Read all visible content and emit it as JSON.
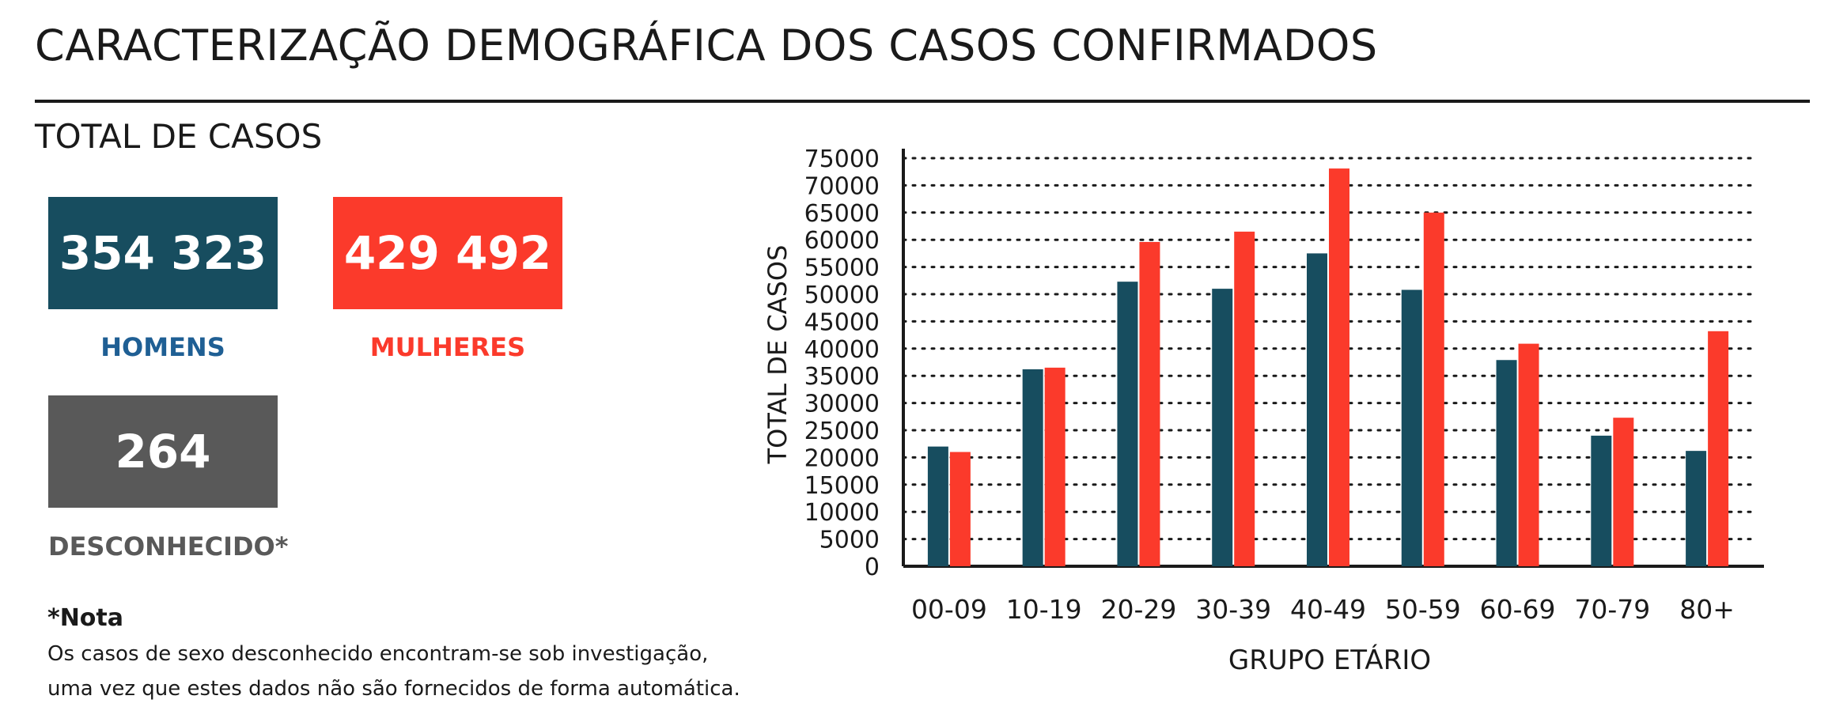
{
  "title": "CARACTERIZAÇÃO DEMOGRÁFICA DOS CASOS CONFIRMADOS",
  "subtitle": "TOTAL DE CASOS",
  "kpis": {
    "homens": {
      "value": "354 323",
      "label": "HOMENS",
      "box_color": "#174d5f",
      "label_color": "#1f5f94"
    },
    "mulheres": {
      "value": "429 492",
      "label": "MULHERES",
      "box_color": "#fb3a2b",
      "label_color": "#fb3a2b"
    },
    "desconhecido": {
      "value": "264",
      "label": "DESCONHECIDO*",
      "box_color": "#595959",
      "label_color": "#595959"
    }
  },
  "note": {
    "title": "*Nota",
    "line1": "Os casos de sexo desconhecido encontram-se sob investigação,",
    "line2": "uma vez que estes dados não são fornecidos de forma automática."
  },
  "chart_data": {
    "type": "bar",
    "categories": [
      "00-09",
      "10-19",
      "20-29",
      "30-39",
      "40-49",
      "50-59",
      "60-69",
      "70-79",
      "80+"
    ],
    "series": [
      {
        "name": "",
        "color": "#174d5f",
        "values": [
          22000,
          36200,
          52300,
          51000,
          57500,
          50800,
          37900,
          24000,
          21200
        ]
      },
      {
        "name": "",
        "color": "#fb3a2b",
        "values": [
          21000,
          36500,
          59600,
          61500,
          73100,
          65000,
          40900,
          27300,
          43200
        ]
      }
    ],
    "xlabel": "GRUPO ETÁRIO",
    "ylabel": "TOTAL DE CASOS",
    "ylim": [
      0,
      75000
    ],
    "yticks": [
      0,
      5000,
      10000,
      15000,
      20000,
      25000,
      30000,
      35000,
      40000,
      45000,
      50000,
      55000,
      60000,
      65000,
      70000,
      75000
    ],
    "grid": "dotted horizontal"
  }
}
